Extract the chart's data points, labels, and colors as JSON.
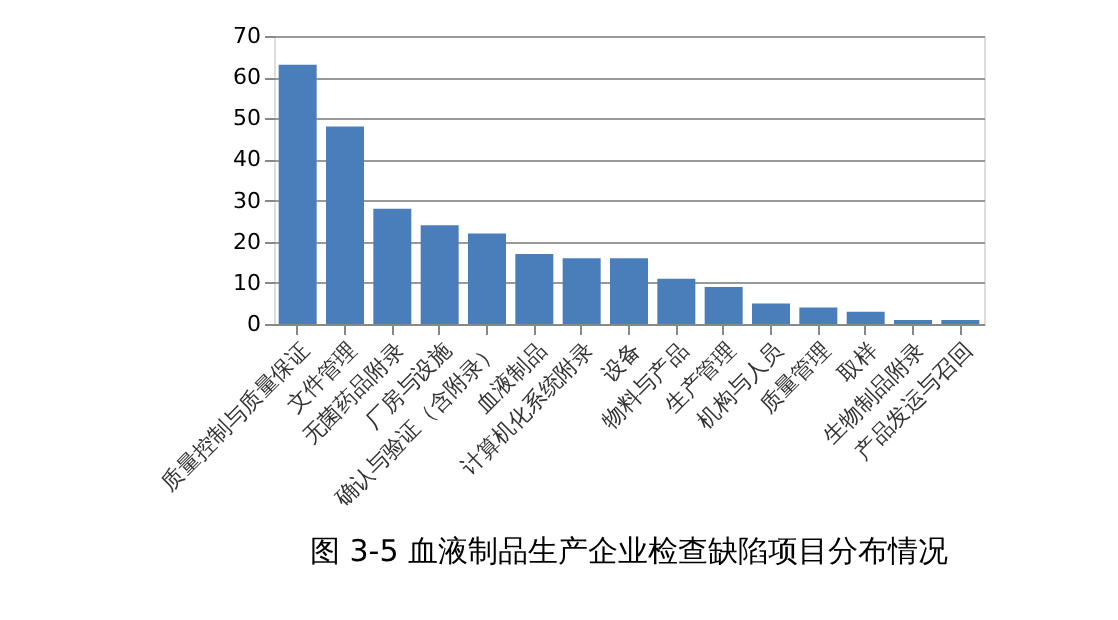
{
  "chart_data": {
    "type": "bar",
    "title": "图 3-5 血液制品生产企业检查缺陷项目分布情况",
    "categories": [
      "质量控制与质量保证",
      "文件管理",
      "无菌药品附录",
      "厂房与设施",
      "确认与验证（含附录）",
      "血液制品",
      "计算机化系统附录",
      "设备",
      "物料与产品",
      "生产管理",
      "机构与人员",
      "质量管理",
      "取样",
      "生物制品附录",
      "产品发运与召回"
    ],
    "values": [
      63,
      48,
      28,
      24,
      22,
      17,
      16,
      16,
      11,
      9,
      5,
      4,
      3,
      1,
      1
    ],
    "color": "#4a7ebb",
    "ylim": [
      0,
      70
    ],
    "yticks": [
      0,
      10,
      20,
      30,
      40,
      50,
      60,
      70
    ],
    "grid": "y"
  }
}
